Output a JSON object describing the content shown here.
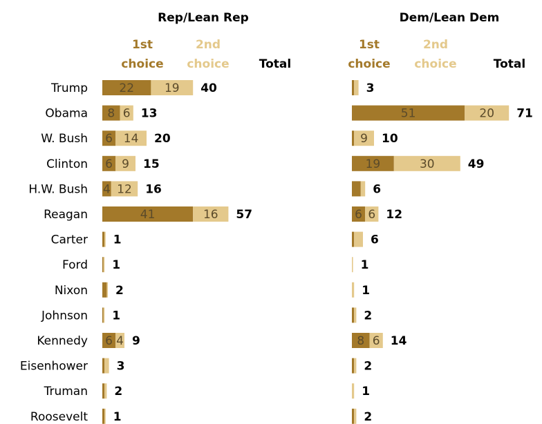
{
  "colors": {
    "first": "#a3792a",
    "second": "#e4c98c",
    "text": "#000000",
    "label_on_bar": "#5a4a2a"
  },
  "chart_data": {
    "type": "bar",
    "stacked": true,
    "orientation": "horizontal",
    "categories": [
      "Trump",
      "Obama",
      "W. Bush",
      "Clinton",
      "H.W. Bush",
      "Reagan",
      "Carter",
      "Ford",
      "Nixon",
      "Johnson",
      "Kennedy",
      "Eisenhower",
      "Truman",
      "Roosevelt"
    ],
    "panels": [
      {
        "title": "Rep/Lean Rep",
        "header_first": [
          "1st",
          "choice"
        ],
        "header_second": [
          "2nd",
          "choice"
        ],
        "header_total": "Total",
        "series": [
          {
            "name": "1st choice",
            "values": [
              22,
              8,
              6,
              6,
              4,
              41,
              1,
              0.5,
              2,
              0.5,
              6,
              1,
              1,
              1
            ],
            "labels": [
              "22",
              "8",
              "6",
              "6",
              "4",
              "41",
              "",
              "",
              "",
              "",
              "6",
              "",
              "",
              ""
            ]
          },
          {
            "name": "2nd choice",
            "values": [
              19,
              6,
              14,
              9,
              12,
              16,
              0.5,
              0.5,
              0.5,
              0.5,
              4,
              2,
              1,
              0.5
            ],
            "labels": [
              "19",
              "6",
              "14",
              "9",
              "12",
              "16",
              "",
              "",
              "",
              "",
              "4",
              "",
              "",
              ""
            ]
          }
        ],
        "totals": [
          "40",
          "13",
          "20",
          "15",
          "16",
          "57",
          "1",
          "1",
          "2",
          "1",
          "9",
          "3",
          "2",
          "1"
        ]
      },
      {
        "title": "Dem/Lean Dem",
        "header_first": [
          "1st",
          "choice"
        ],
        "header_second": [
          "2nd",
          "choice"
        ],
        "header_total": "Total",
        "series": [
          {
            "name": "1st choice",
            "values": [
              1,
              51,
              1,
              19,
              4,
              6,
              1,
              0,
              0,
              1,
              8,
              1,
              0,
              1
            ],
            "labels": [
              "",
              "51",
              "",
              "19",
              "",
              "6",
              "",
              "",
              "",
              "",
              "8",
              "",
              "",
              ""
            ]
          },
          {
            "name": "2nd choice",
            "values": [
              2,
              20,
              9,
              30,
              2,
              6,
              4,
              0.5,
              1,
              1,
              6,
              1,
              1,
              1
            ],
            "labels": [
              "",
              "20",
              "9",
              "30",
              "",
              "6",
              "",
              "",
              "",
              "",
              "6",
              "",
              "",
              ""
            ]
          }
        ],
        "totals": [
          "3",
          "71",
          "10",
          "49",
          "6",
          "12",
          "6",
          "1",
          "1",
          "2",
          "14",
          "2",
          "1",
          "2"
        ]
      }
    ]
  }
}
